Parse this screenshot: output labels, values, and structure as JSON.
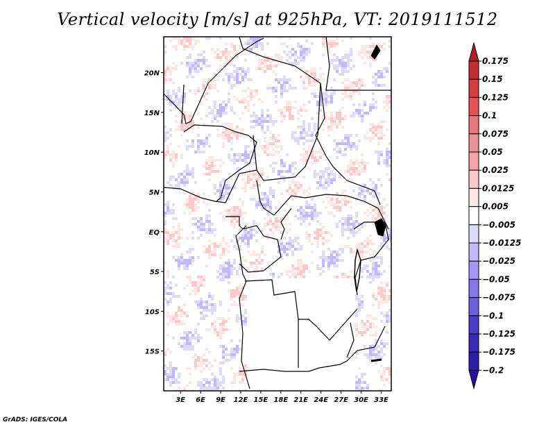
{
  "chart_data": {
    "type": "heatmap",
    "title": "Vertical velocity [m/s] at 925hPa, VT: 2019111512",
    "xlabel": "",
    "ylabel": "",
    "x_ticks": [
      "3E",
      "6E",
      "9E",
      "12E",
      "15E",
      "18E",
      "21E",
      "24E",
      "27E",
      "30E",
      "33E"
    ],
    "x_tick_values": [
      3,
      6,
      9,
      12,
      15,
      18,
      21,
      24,
      27,
      30,
      33
    ],
    "y_ticks": [
      "20N",
      "15N",
      "10N",
      "5N",
      "EQ",
      "5S",
      "10S",
      "15S"
    ],
    "y_tick_values": [
      20,
      15,
      10,
      5,
      0,
      -5,
      -10,
      -15
    ],
    "xlim": [
      0.5,
      34.5
    ],
    "ylim": [
      -20,
      24.5
    ],
    "grid": false,
    "colorbar": {
      "placement": "right",
      "levels": [
        "0.175",
        "0.15",
        "0.125",
        "0.1",
        "0.075",
        "0.05",
        "0.025",
        "0.0125",
        "0.005",
        "-0.005",
        "-0.0125",
        "-0.025",
        "-0.05",
        "-0.075",
        "-0.1",
        "-0.125",
        "-0.175",
        "-0.2"
      ],
      "colors": [
        "#b02127",
        "#c42f33",
        "#d63c40",
        "#e65256",
        "#e8787b",
        "#e69496",
        "#f5a4a6",
        "#fcc9ca",
        "#fde6e6",
        "#ffffff",
        "#dcdcfa",
        "#c3b9fa",
        "#a696fa",
        "#8576ec",
        "#6e5fdc",
        "#4c3ccc",
        "#3b2ab8",
        "#2e1ea6",
        "#2b0ea0"
      ],
      "extend": "both"
    },
    "field": "vertical velocity, 925hPa, signed noise pattern (positive red, negative blue)"
  },
  "footer": "GrADS: IGES/COLA"
}
